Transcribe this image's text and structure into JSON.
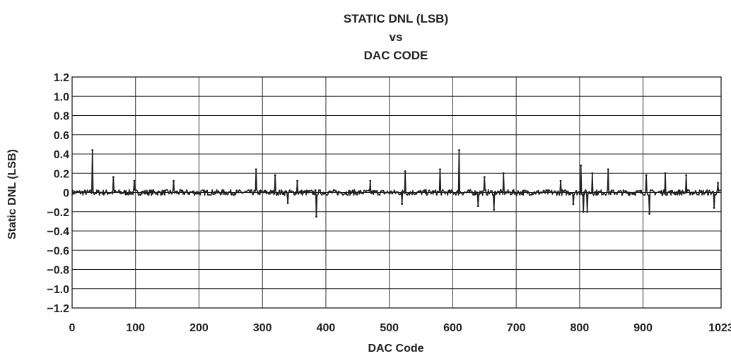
{
  "chart_data": {
    "type": "line",
    "title_lines": [
      "STATIC DNL (LSB)",
      "vs",
      "DAC CODE"
    ],
    "xlabel": "DAC Code",
    "ylabel": "Static DNL (LSB)",
    "xlim": [
      0,
      1023
    ],
    "ylim": [
      -1.2,
      1.2
    ],
    "grid": true,
    "x_ticks": [
      {
        "value": 0,
        "label": "0"
      },
      {
        "value": 100,
        "label": "100"
      },
      {
        "value": 200,
        "label": "200"
      },
      {
        "value": 300,
        "label": "300"
      },
      {
        "value": 400,
        "label": "400"
      },
      {
        "value": 500,
        "label": "500"
      },
      {
        "value": 600,
        "label": "600"
      },
      {
        "value": 700,
        "label": "700"
      },
      {
        "value": 800,
        "label": "800"
      },
      {
        "value": 900,
        "label": "900"
      },
      {
        "value": 1023,
        "label": "1023"
      }
    ],
    "y_ticks": [
      {
        "value": 1.2,
        "label": "1.2"
      },
      {
        "value": 1.0,
        "label": "1.0"
      },
      {
        "value": 0.8,
        "label": "0.8"
      },
      {
        "value": 0.6,
        "label": "0.6"
      },
      {
        "value": 0.4,
        "label": "0.4"
      },
      {
        "value": 0.2,
        "label": "0.2"
      },
      {
        "value": 0,
        "label": "0"
      },
      {
        "value": -0.2,
        "label": "−0.2"
      },
      {
        "value": -0.4,
        "label": "−0.4"
      },
      {
        "value": -0.6,
        "label": "−0.6"
      },
      {
        "value": -0.8,
        "label": "−0.8"
      },
      {
        "value": -1.0,
        "label": "−1.0"
      },
      {
        "value": -1.2,
        "label": "−1.2"
      }
    ],
    "series": [
      {
        "color": "#231f20",
        "noise_amplitude": 0.03,
        "outliers": [
          {
            "x": 32,
            "y": 0.44
          },
          {
            "x": 65,
            "y": 0.16
          },
          {
            "x": 98,
            "y": 0.12
          },
          {
            "x": 160,
            "y": 0.12
          },
          {
            "x": 290,
            "y": 0.24
          },
          {
            "x": 320,
            "y": 0.18
          },
          {
            "x": 340,
            "y": -0.11
          },
          {
            "x": 355,
            "y": 0.12
          },
          {
            "x": 385,
            "y": -0.25
          },
          {
            "x": 470,
            "y": 0.12
          },
          {
            "x": 520,
            "y": -0.12
          },
          {
            "x": 525,
            "y": 0.22
          },
          {
            "x": 580,
            "y": 0.24
          },
          {
            "x": 610,
            "y": 0.44
          },
          {
            "x": 640,
            "y": -0.14
          },
          {
            "x": 650,
            "y": 0.16
          },
          {
            "x": 665,
            "y": -0.18
          },
          {
            "x": 680,
            "y": 0.2
          },
          {
            "x": 770,
            "y": 0.12
          },
          {
            "x": 790,
            "y": -0.12
          },
          {
            "x": 802,
            "y": 0.28
          },
          {
            "x": 806,
            "y": -0.2
          },
          {
            "x": 812,
            "y": -0.2
          },
          {
            "x": 820,
            "y": 0.2
          },
          {
            "x": 845,
            "y": 0.24
          },
          {
            "x": 905,
            "y": 0.18
          },
          {
            "x": 910,
            "y": -0.22
          },
          {
            "x": 935,
            "y": 0.2
          },
          {
            "x": 968,
            "y": 0.18
          },
          {
            "x": 1012,
            "y": -0.16
          },
          {
            "x": 1018,
            "y": 0.1
          }
        ]
      }
    ]
  }
}
